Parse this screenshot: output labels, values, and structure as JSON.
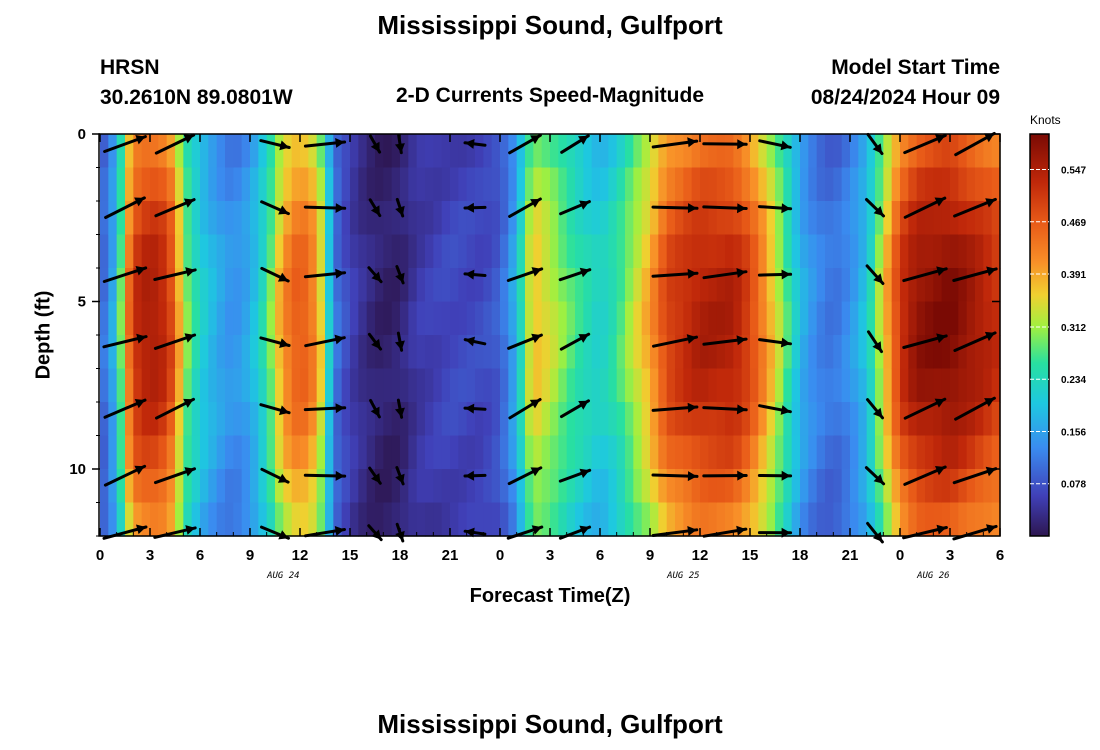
{
  "header": {
    "title": "Mississippi Sound, Gulfport",
    "station": "HRSN",
    "coordinates": "30.2610N  89.0801W",
    "subtitle": "2-D Currents Speed-Magnitude",
    "model_start_label": "Model Start Time",
    "model_start_value": "08/24/2024 Hour 09"
  },
  "footer": {
    "title": "Mississippi Sound, Gulfport"
  },
  "chart_data": {
    "type": "heatmap",
    "title": "2-D Currents Speed-Magnitude",
    "xlabel": "Forecast Time(Z)",
    "ylabel": "Depth (ft)",
    "x_start_hour": 0,
    "x_hours": 54,
    "ylim": [
      0,
      12
    ],
    "x_tick_labels": [
      "0",
      "3",
      "6",
      "9",
      "12",
      "15",
      "18",
      "21",
      "0",
      "3",
      "6",
      "9",
      "12",
      "15",
      "18",
      "21",
      "0",
      "3",
      "6"
    ],
    "y_tick_labels": [
      "0",
      "5",
      "10"
    ],
    "y_tick_values": [
      0,
      5,
      10
    ],
    "date_labels": [
      {
        "hour": 11,
        "text": "AUG 24"
      },
      {
        "hour": 35,
        "text": "AUG 25"
      },
      {
        "hour": 50,
        "text": "AUG 26"
      }
    ],
    "colorbar": {
      "unit": "Knots",
      "min": 0.0,
      "max": 0.6,
      "tick_labels": [
        "0.547",
        "0.469",
        "0.391",
        "0.312",
        "0.234",
        "0.156",
        "0.078"
      ],
      "tick_values": [
        0.547,
        0.469,
        0.391,
        0.312,
        0.234,
        0.156,
        0.078
      ]
    },
    "speed_profile_by_hour": [
      [
        0,
        0.09
      ],
      [
        0.5,
        0.13
      ],
      [
        1,
        0.2
      ],
      [
        1.5,
        0.38
      ],
      [
        2,
        0.52
      ],
      [
        3,
        0.56
      ],
      [
        4,
        0.53
      ],
      [
        4.5,
        0.46
      ],
      [
        5,
        0.32
      ],
      [
        6,
        0.22
      ],
      [
        7,
        0.17
      ],
      [
        8,
        0.14
      ],
      [
        9,
        0.17
      ],
      [
        10,
        0.26
      ],
      [
        11,
        0.42
      ],
      [
        12,
        0.48
      ],
      [
        13,
        0.42
      ],
      [
        13.5,
        0.3
      ],
      [
        14,
        0.12
      ],
      [
        15,
        0.06
      ],
      [
        16,
        0.03
      ],
      [
        17,
        0.015
      ],
      [
        18,
        0.02
      ],
      [
        19,
        0.05
      ],
      [
        21,
        0.07
      ],
      [
        23,
        0.07
      ],
      [
        24,
        0.09
      ],
      [
        25,
        0.18
      ],
      [
        25.5,
        0.3
      ],
      [
        26,
        0.38
      ],
      [
        27,
        0.34
      ],
      [
        28,
        0.29
      ],
      [
        29,
        0.25
      ],
      [
        30,
        0.22
      ],
      [
        31,
        0.26
      ],
      [
        33,
        0.4
      ],
      [
        34,
        0.5
      ],
      [
        36,
        0.55
      ],
      [
        38,
        0.55
      ],
      [
        39,
        0.5
      ],
      [
        40,
        0.41
      ],
      [
        41,
        0.3
      ],
      [
        42,
        0.18
      ],
      [
        43,
        0.13
      ],
      [
        44,
        0.11
      ],
      [
        45,
        0.14
      ],
      [
        46,
        0.2
      ],
      [
        47,
        0.36
      ],
      [
        48,
        0.52
      ],
      [
        49,
        0.58
      ],
      [
        51,
        0.6
      ],
      [
        53,
        0.55
      ],
      [
        54,
        0.52
      ]
    ],
    "current_vectors": {
      "hours": [
        1.5,
        4.5,
        10.5,
        13.5,
        16.5,
        18,
        22.5,
        25.5,
        28.5,
        34.5,
        37.5,
        40.5,
        46.5,
        49.5,
        52.5
      ],
      "depths_ft": [
        0.3,
        2.2,
        4.2,
        6.2,
        8.2,
        10.2,
        11.9
      ],
      "direction_deg_by_column": [
        20,
        20,
        340,
        5,
        305,
        285,
        175,
        25,
        25,
        5,
        3,
        355,
        310,
        20,
        22
      ],
      "speed_knots_by_column": [
        0.54,
        0.5,
        0.26,
        0.46,
        0.05,
        0.03,
        0.08,
        0.38,
        0.3,
        0.55,
        0.52,
        0.3,
        0.15,
        0.58,
        0.55
      ]
    }
  }
}
